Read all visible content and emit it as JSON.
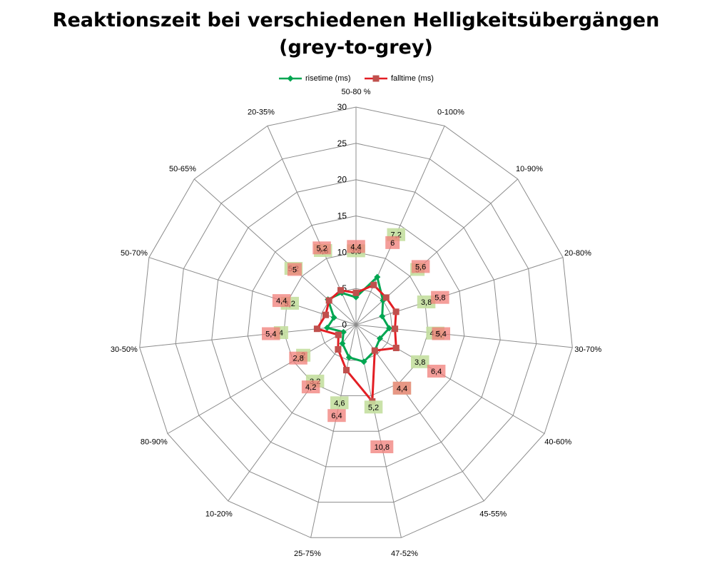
{
  "chart_data": {
    "type": "radar",
    "title_line1": "Reaktionszeit bei verschiedenen Helligkeitsübergängen",
    "title_line2": "(grey-to-grey)",
    "categories": [
      "50-80 %",
      "0-100%",
      "10-90%",
      "20-80%",
      "30-70%",
      "40-60%",
      "45-55%",
      "47-52%",
      "25-75%",
      "10-20%",
      "80-90%",
      "30-50%",
      "50-70%",
      "50-65%",
      "20-35%"
    ],
    "series": [
      {
        "name": "risetime (ms)",
        "color": "#00a651",
        "label_bg": "#c4dfa0",
        "marker": "diamond",
        "values": [
          3.8,
          7.2,
          5,
          3.8,
          4.6,
          3.8,
          4.4,
          5.2,
          4.6,
          3.2,
          2,
          4,
          3.2,
          5.2,
          4.8
        ],
        "labels": [
          "3,8",
          "7,2",
          "5",
          "3,8",
          "4,6",
          "3,8",
          "4,4",
          "5,2",
          "4,6",
          "3,2",
          "2",
          "4",
          "3,2",
          "5,2",
          "4,8"
        ]
      },
      {
        "name": "falltime (ms)",
        "color": "#e31e24",
        "label_bg": "#f07e78",
        "marker": "square",
        "values": [
          4.4,
          6,
          5.6,
          5.8,
          5.4,
          6.4,
          4.4,
          10.8,
          6.4,
          4.2,
          2.8,
          5.4,
          4.4,
          5,
          5.2
        ],
        "labels": [
          "4,4",
          "6",
          "5,6",
          "5,8",
          "5,4",
          "6,4",
          "4,4",
          "10,8",
          "6,4",
          "4,2",
          "2,8",
          "5,4",
          "4,4",
          "5",
          "5,2"
        ]
      }
    ],
    "r_ticks": [
      "0",
      "5",
      "10",
      "15",
      "20",
      "25",
      "30"
    ],
    "rlim": [
      0,
      30
    ],
    "r_step": 5,
    "grid": true,
    "legend_position": "top"
  }
}
